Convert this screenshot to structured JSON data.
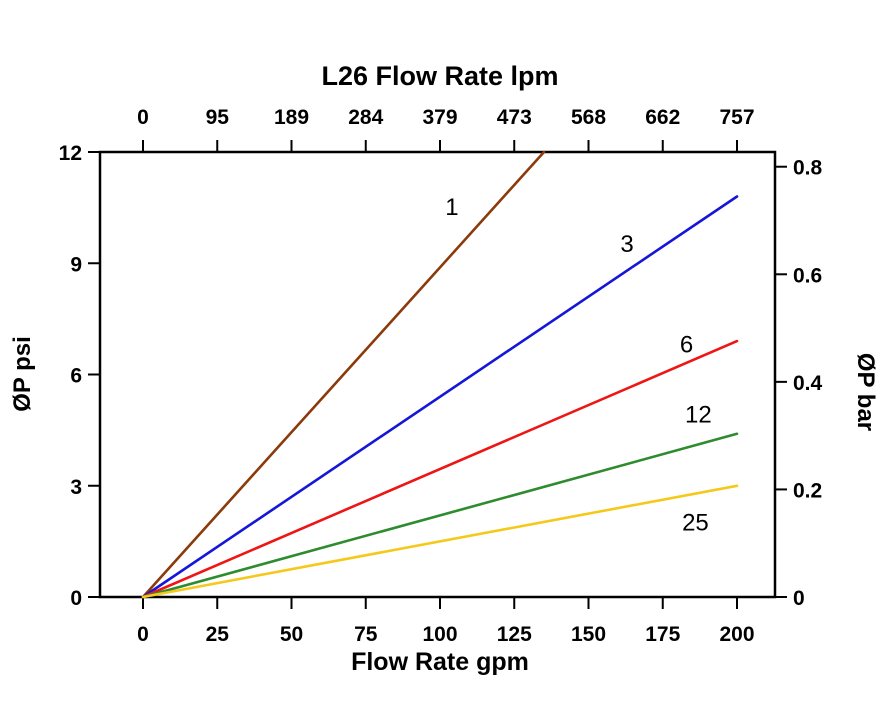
{
  "chart_data": {
    "type": "line",
    "title_top": "L26 Flow Rate lpm",
    "xlabel_bottom": "Flow Rate gpm",
    "ylabel_left": "ØP psi",
    "ylabel_right": "ØP bar",
    "background": "#FFFFFF",
    "grid": "off",
    "x_axis": {
      "label": "Flow Rate gpm",
      "range": [
        0,
        200
      ],
      "ticks": [
        0,
        25,
        50,
        75,
        100,
        125,
        150,
        175,
        200
      ]
    },
    "top_axis": {
      "label": "L26 Flow Rate lpm",
      "tick_labels": [
        "0",
        "95",
        "189",
        "284",
        "379",
        "473",
        "568",
        "662",
        "757"
      ]
    },
    "y_axis": {
      "label": "ØP psi",
      "range": [
        0,
        12
      ],
      "ticks": [
        0,
        3,
        6,
        9,
        12
      ]
    },
    "right_axis": {
      "label": "ØP bar",
      "ticks": [
        0,
        0.2,
        0.4,
        0.6,
        0.8
      ],
      "psi_per_bar": 14.5038
    },
    "series": [
      {
        "label": "1",
        "color": "#8B3A0B",
        "points": [
          [
            0,
            0
          ],
          [
            135,
            12
          ]
        ],
        "label_at": [
          104,
          10.3
        ]
      },
      {
        "label": "3",
        "color": "#1616D8",
        "points": [
          [
            0,
            0
          ],
          [
            200,
            10.8
          ]
        ],
        "label_at": [
          163,
          9.3
        ]
      },
      {
        "label": "6",
        "color": "#EE1515",
        "points": [
          [
            0,
            0
          ],
          [
            200,
            6.9
          ]
        ],
        "label_at": [
          183,
          6.6
        ]
      },
      {
        "label": "12",
        "color": "#2E8B2E",
        "points": [
          [
            0,
            0
          ],
          [
            200,
            4.4
          ]
        ],
        "label_at": [
          187,
          4.7
        ]
      },
      {
        "label": "25",
        "color": "#F5C91B",
        "points": [
          [
            0,
            0
          ],
          [
            200,
            3.0
          ]
        ],
        "label_at": [
          186,
          1.8
        ]
      }
    ]
  }
}
